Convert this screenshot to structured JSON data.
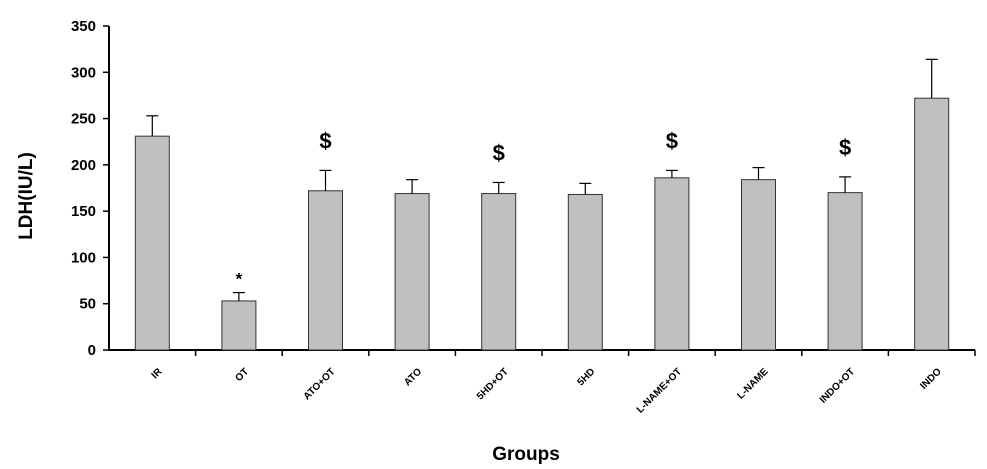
{
  "chart_data": {
    "type": "bar",
    "xlabel": "Groups",
    "ylabel": "LDH(IU/L)",
    "ylim": [
      0,
      350
    ],
    "yticks": [
      "0",
      "50",
      "100",
      "150",
      "200",
      "250",
      "300",
      "350"
    ],
    "categories": [
      "IR",
      "OT",
      "ATO+OT",
      "ATO",
      "5HD+OT",
      "5HD",
      "L-NAME+OT",
      "L-NAME",
      "INDO+OT",
      "INDO"
    ],
    "values": [
      231,
      53,
      172,
      169,
      169,
      168,
      186,
      184,
      170,
      272
    ],
    "errors": [
      22,
      9,
      22,
      15,
      12,
      12,
      8,
      13,
      17,
      42
    ],
    "annotations": [
      "",
      "*",
      "$",
      "",
      "$",
      "",
      "$",
      "",
      "$",
      ""
    ],
    "bar_color": "#c0c0c0",
    "grid": false,
    "legend": "none"
  }
}
